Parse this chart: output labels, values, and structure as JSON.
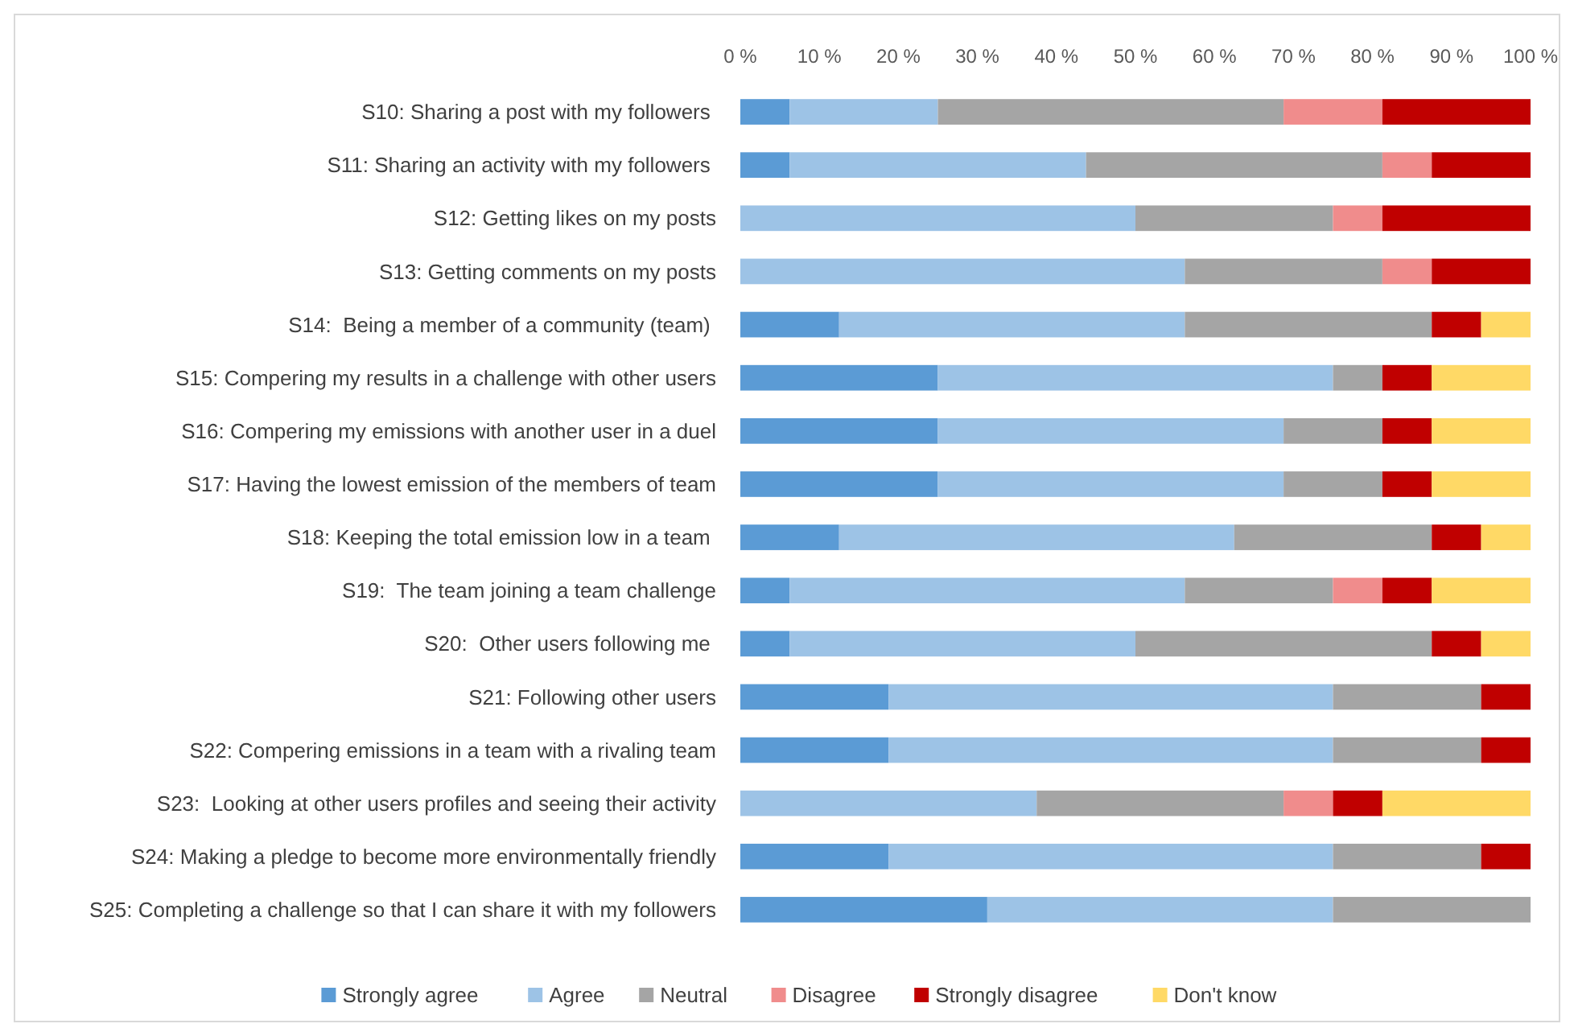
{
  "chart_data": {
    "type": "bar",
    "orientation": "horizontal",
    "stacked": true,
    "categories": [
      "S10: Sharing a post with my followers ",
      "S11: Sharing an activity with my followers ",
      "S12: Getting likes on my posts",
      "S13: Getting comments on my posts",
      "S14:  Being a member of a community (team) ",
      "S15: Compering my results in a challenge with other users",
      "S16: Compering my emissions with another user in a duel",
      "S17: Having the lowest emission of the members of team",
      "S18: Keeping the total emission low in a team ",
      "S19:  The team joining a team challenge",
      "S20:  Other users following me ",
      "S21: Following other users",
      "S22: Compering emissions in a team with a rivaling team",
      "S23:  Looking at other users profiles and seeing their activity",
      "S24: Making a pledge to become more environmentally friendly",
      "S25: Completing a challenge so that I can share it with my followers"
    ],
    "series": [
      {
        "name": "Strongly agree",
        "color": "#5b9bd5",
        "values": [
          6.25,
          6.25,
          0,
          0,
          12.5,
          25,
          25,
          25,
          12.5,
          6.25,
          6.25,
          18.75,
          18.75,
          0,
          18.75,
          31.25
        ]
      },
      {
        "name": "Agree",
        "color": "#9dc3e6",
        "values": [
          18.75,
          37.5,
          50,
          56.25,
          43.75,
          50,
          43.75,
          43.75,
          50,
          50,
          43.75,
          56.25,
          56.25,
          37.5,
          56.25,
          43.75
        ]
      },
      {
        "name": "Neutral",
        "color": "#a5a5a5",
        "values": [
          43.75,
          37.5,
          25,
          25,
          31.25,
          6.25,
          12.5,
          12.5,
          25,
          18.75,
          37.5,
          18.75,
          18.75,
          31.25,
          18.75,
          25
        ]
      },
      {
        "name": "Disagree",
        "color": "#f08c8c",
        "values": [
          12.5,
          6.25,
          6.25,
          6.25,
          0,
          0,
          0,
          0,
          0,
          6.25,
          0,
          0,
          0,
          6.25,
          0,
          0
        ]
      },
      {
        "name": "Strongly disagree",
        "color": "#c00000",
        "values": [
          18.75,
          12.5,
          18.75,
          12.5,
          6.25,
          6.25,
          6.25,
          6.25,
          6.25,
          6.25,
          6.25,
          6.25,
          6.25,
          6.25,
          6.25,
          0
        ]
      },
      {
        "name": "Don't know",
        "color": "#ffd966",
        "values": [
          0,
          0,
          0,
          0,
          6.25,
          12.5,
          12.5,
          12.5,
          6.25,
          12.5,
          6.25,
          0,
          0,
          18.75,
          0,
          0
        ]
      }
    ],
    "xlim": [
      0,
      100
    ],
    "xticks": [
      {
        "value": 0,
        "label": "0 %"
      },
      {
        "value": 10,
        "label": "10 %"
      },
      {
        "value": 20,
        "label": "20 %"
      },
      {
        "value": 30,
        "label": "30 %"
      },
      {
        "value": 40,
        "label": "40 %"
      },
      {
        "value": 50,
        "label": "50 %"
      },
      {
        "value": 60,
        "label": "60 %"
      },
      {
        "value": 70,
        "label": "70 %"
      },
      {
        "value": 80,
        "label": "80 %"
      },
      {
        "value": 90,
        "label": "90 %"
      },
      {
        "value": 100,
        "label": "100 %"
      }
    ],
    "legend": "bottom",
    "grid": false
  }
}
